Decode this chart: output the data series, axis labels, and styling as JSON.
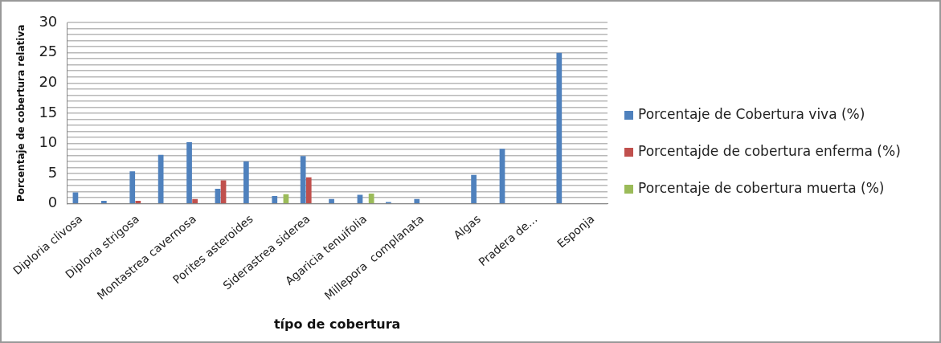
{
  "chart_data": {
    "type": "bar",
    "xlabel": "típo de cobertura",
    "ylabel": "Porcentaje de cobertura relativa",
    "categories": [
      "Diploria clivosa",
      null,
      "Diploria strigosa",
      null,
      "Montastrea cavernosa",
      null,
      "Porites asteroides",
      null,
      "Siderastrea siderea",
      null,
      "Agaricia tenuifolia",
      null,
      "Millepora  complanata",
      null,
      "Algas",
      null,
      "Pradera de…",
      null,
      "Esponja"
    ],
    "series": [
      {
        "name": "Porcentaje de Cobertura viva (%)",
        "color": "#4f81bd",
        "values": [
          1.9,
          0.5,
          5.4,
          8.1,
          10.2,
          2.5,
          7.0,
          1.3,
          7.9,
          0.8,
          1.5,
          0.3,
          0.8,
          null,
          4.8,
          9.1,
          null,
          25.0,
          null
        ]
      },
      {
        "name": "Porcentajde de cobertura enferma (%)",
        "color": "#c0504d",
        "values": [
          null,
          null,
          0.5,
          null,
          0.8,
          3.9,
          null,
          null,
          4.4,
          null,
          null,
          null,
          null,
          null,
          null,
          null,
          null,
          null,
          null
        ]
      },
      {
        "name": "Porcentaje de cobertura muerta (%)",
        "color": "#9bbb59",
        "values": [
          null,
          null,
          null,
          null,
          null,
          null,
          null,
          1.6,
          null,
          null,
          1.7,
          null,
          null,
          null,
          null,
          null,
          null,
          null,
          null
        ]
      }
    ],
    "ylim": [
      0,
      30
    ],
    "yticks": [
      0,
      {
        "value": 1,
        "label": null
      },
      {
        "value": 2,
        "label": null
      },
      {
        "value": 3,
        "label": null
      },
      {
        "value": 4,
        "label": null
      },
      5,
      {
        "value": 6,
        "label": null
      },
      {
        "value": 7,
        "label": null
      },
      {
        "value": 8,
        "label": null
      },
      {
        "value": 9,
        "label": null
      },
      10,
      {
        "value": 11,
        "label": null
      },
      {
        "value": 12,
        "label": null
      },
      {
        "value": 13,
        "label": null
      },
      {
        "value": 14,
        "label": null
      },
      15,
      {
        "value": 16,
        "label": null
      },
      {
        "value": 17,
        "label": null
      },
      {
        "value": 18,
        "label": null
      },
      {
        "value": 19,
        "label": null
      },
      20,
      {
        "value": 21,
        "label": null
      },
      {
        "value": 22,
        "label": null
      },
      {
        "value": 23,
        "label": null
      },
      {
        "value": 24,
        "label": null
      },
      25,
      {
        "value": 26,
        "label": null
      },
      {
        "value": 27,
        "label": null
      },
      {
        "value": 28,
        "label": null
      },
      {
        "value": 29,
        "label": null
      },
      30
    ],
    "grid": "y",
    "legend": "right"
  }
}
